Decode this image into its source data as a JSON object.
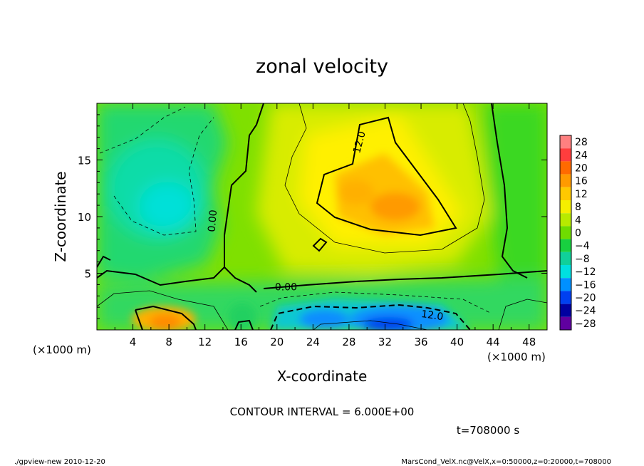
{
  "chart_data": {
    "type": "heatmap",
    "title": "zonal velocity",
    "xlabel": "X-coordinate",
    "ylabel": "Z-coordinate",
    "x_unit_label": "(×1000 m)",
    "y_unit_label": "(×1000 m)",
    "xlim": [
      0,
      50
    ],
    "ylim": [
      0,
      20
    ],
    "x_ticks": [
      4,
      8,
      12,
      16,
      20,
      24,
      28,
      32,
      36,
      40,
      44,
      48
    ],
    "y_ticks": [
      5,
      10,
      15
    ],
    "colorbar": {
      "levels": [
        28,
        24,
        20,
        16,
        12,
        8,
        4,
        0,
        -4,
        -8,
        -12,
        -16,
        -20,
        -24,
        -28
      ],
      "labels": [
        "28",
        "24",
        "20",
        "16",
        "12",
        "8",
        "4",
        "0",
        "−4",
        "−8",
        "−12",
        "−16",
        "−20",
        "−24",
        "−28"
      ],
      "colors": [
        "#ff8080",
        "#ff3d3d",
        "#ff6a00",
        "#ff9a00",
        "#ffc800",
        "#f5ee00",
        "#b8ea00",
        "#6fdc00",
        "#18d040",
        "#10d09a",
        "#00e0e0",
        "#0090ff",
        "#0040f0",
        "#0000a0",
        "#6000a0"
      ]
    },
    "contour_interval_text": "CONTOUR INTERVAL = 6.000E+00",
    "contour_labels": [
      {
        "text": "12.0",
        "x": 29.5,
        "z": 16.5,
        "rotate": -75
      },
      {
        "text": "0.00",
        "x": 13.2,
        "z": 9.6,
        "rotate": -85
      },
      {
        "text": "0.00",
        "x": 21.0,
        "z": 3.5,
        "rotate": 0
      },
      {
        "text": "12.0",
        "x": 37.2,
        "z": 1.0,
        "rotate": 8
      }
    ],
    "field_features": [
      {
        "name": "positive-max",
        "x": 33,
        "z": 11,
        "value": 18
      },
      {
        "name": "positive-lower-left",
        "x": 8,
        "z": 1,
        "value": 16
      },
      {
        "name": "negative-lower",
        "x": 33,
        "z": 1,
        "value": -20
      },
      {
        "name": "negative-upper-left",
        "x": 7,
        "z": 13,
        "value": -10
      }
    ]
  },
  "time_label": "t=708000 s",
  "footer": {
    "left": "./gpview-new   2010-12-20",
    "right": "MarsCond_VelX.nc@VelX,x=0:50000,z=0:20000,t=708000"
  }
}
